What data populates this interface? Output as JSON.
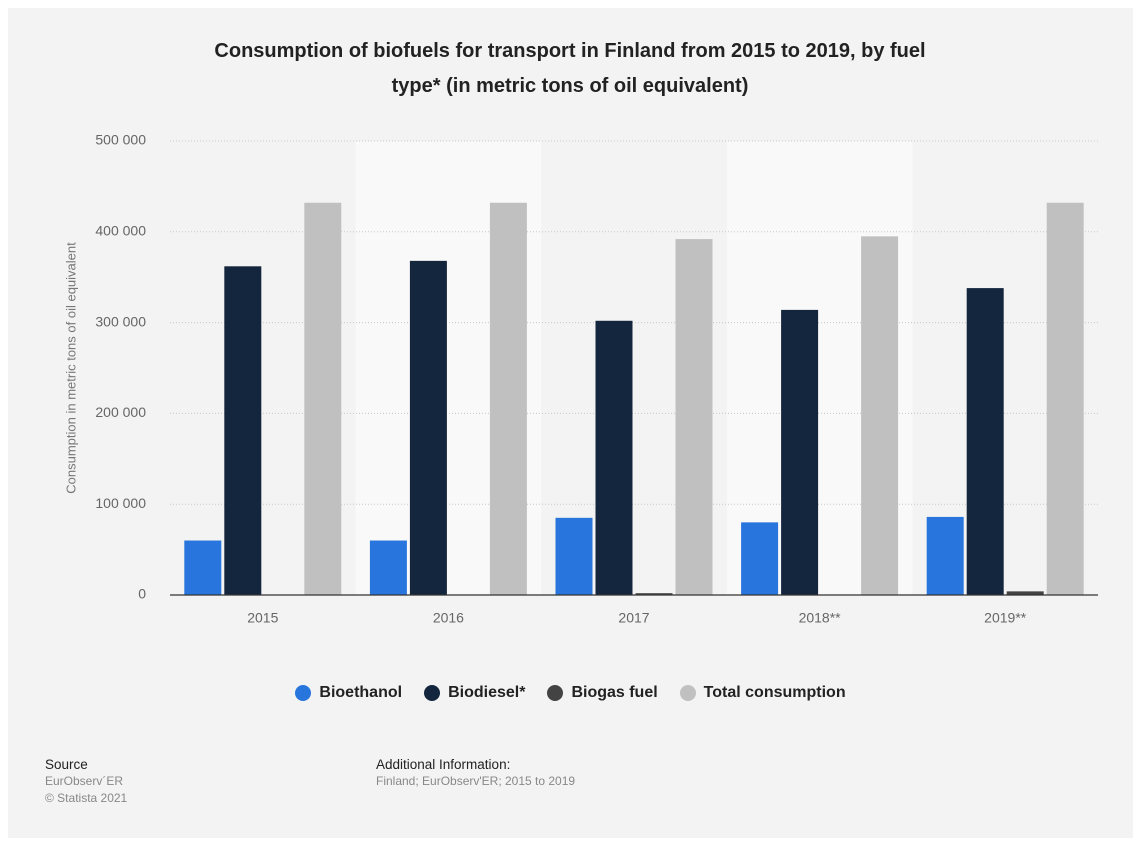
{
  "chart_data": {
    "type": "bar",
    "title": "Consumption of biofuels for transport in Finland from 2015 to 2019, by fuel type* (in metric tons of oil equivalent)",
    "y_label": "Consumption in metric tons of oil equivalent",
    "categories": [
      "2015",
      "2016",
      "2017",
      "2018**",
      "2019**"
    ],
    "series": [
      {
        "name": "Bioethanol",
        "color": "#2876dd",
        "values": [
          60000,
          60000,
          85000,
          80000,
          86000
        ]
      },
      {
        "name": "Biodiesel*",
        "color": "#14263d",
        "values": [
          362000,
          368000,
          302000,
          314000,
          338000
        ]
      },
      {
        "name": "Biogas fuel",
        "color": "#434343",
        "values": [
          0,
          0,
          2000,
          0,
          4000
        ]
      },
      {
        "name": "Total consumption",
        "color": "#c0c0c0",
        "values": [
          432000,
          432000,
          392000,
          395000,
          432000
        ]
      }
    ],
    "ylim": [
      0,
      500000
    ],
    "yticks": [
      0,
      {
        "value": 100000,
        "label": "100 000"
      },
      {
        "value": 200000,
        "label": "200 000"
      },
      {
        "value": 300000,
        "label": "300 000"
      },
      {
        "value": 400000,
        "label": "400 000"
      },
      {
        "value": 500000,
        "label": "500 000"
      }
    ],
    "grid": true,
    "legend": "bottom",
    "source": {
      "heading": "Source",
      "lines": [
        "EurObserv´ER",
        "© Statista 2021"
      ]
    },
    "additional_info": {
      "heading": "Additional Information:",
      "text": "Finland; EurObserv'ER; 2015 to 2019"
    }
  }
}
